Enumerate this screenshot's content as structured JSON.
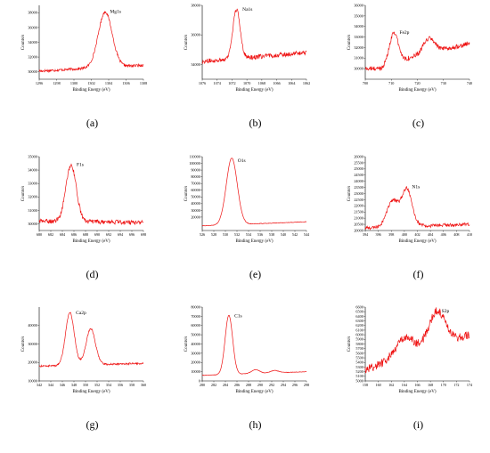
{
  "colors": {
    "line": "#ee1111",
    "axis": "#000000",
    "background": "#ffffff"
  },
  "chart_data": [
    {
      "type": "line",
      "panel": "(a)",
      "peak": "Mg1s",
      "xlabel": "Binding Energy (eV)",
      "ylabel": "Counts/s",
      "xlim": [
        1296,
        1308
      ],
      "ylim": [
        29000,
        39000
      ],
      "xticks": [
        "1296",
        "1298",
        "1300",
        "1302",
        "1304",
        "1306",
        "1308"
      ],
      "yticks": [
        "30000",
        "32000",
        "34000",
        "36000",
        "38000"
      ],
      "reversed": false,
      "baseline": [
        [
          1296,
          30100
        ],
        [
          1308,
          30900
        ]
      ],
      "peaks": [
        {
          "center": 1303.6,
          "height": 7500,
          "width": 0.8
        }
      ],
      "noise": 180
    },
    {
      "type": "line",
      "panel": "(b)",
      "peak": "Na1s",
      "xlabel": "Binding Energy (eV)",
      "ylabel": "Counts/s",
      "xlim": [
        1076,
        1062
      ],
      "ylim": [
        33000,
        38000
      ],
      "xticks": [
        "1076",
        "1074",
        "1072",
        "1070",
        "1068",
        "1066",
        "1064",
        "1062"
      ],
      "yticks": [
        "34000",
        "36000",
        "38000"
      ],
      "reversed": true,
      "baseline": [
        [
          1076,
          34200
        ],
        [
          1062,
          34800
        ]
      ],
      "peaks": [
        {
          "center": 1071.4,
          "height": 3300,
          "width": 0.5
        }
      ],
      "noise": 150
    },
    {
      "type": "line",
      "panel": "(c)",
      "peak": "Fe2p",
      "xlabel": "Binding Energy (eV)",
      "ylabel": "Counts/s",
      "xlim": [
        700,
        740
      ],
      "ylim": [
        29000,
        36000
      ],
      "xticks": [
        "700",
        "710",
        "720",
        "730",
        "740"
      ],
      "yticks": [
        "30000",
        "31000",
        "32000",
        "33000",
        "34000",
        "35000",
        "36000"
      ],
      "reversed": false,
      "step": {
        "at": 707,
        "from": 30000,
        "to": 32300
      },
      "baseline": [
        [
          700,
          30000
        ],
        [
          740,
          32400
        ]
      ],
      "peaks": [
        {
          "center": 711,
          "height": 2800,
          "width": 1.6
        },
        {
          "center": 724.5,
          "height": 1400,
          "width": 2.2
        }
      ],
      "noise": 220
    },
    {
      "type": "line",
      "panel": "(d)",
      "peak": "F1s",
      "xlabel": "Binding Energy (eV)",
      "ylabel": "Counts/s",
      "xlim": [
        680,
        698
      ],
      "ylim": [
        29500,
        35000
      ],
      "xticks": [
        "680",
        "682",
        "684",
        "686",
        "688",
        "690",
        "692",
        "694",
        "696",
        "698"
      ],
      "yticks": [
        "30000",
        "31000",
        "32000",
        "33000",
        "34000",
        "35000"
      ],
      "reversed": false,
      "baseline": [
        [
          680,
          30200
        ],
        [
          698,
          30100
        ]
      ],
      "peaks": [
        {
          "center": 685.5,
          "height": 4200,
          "width": 0.9
        }
      ],
      "noise": 160
    },
    {
      "type": "line",
      "panel": "(e)",
      "peak": "O1s",
      "xlabel": "Binding Energy (eV)",
      "ylabel": "Counts/s",
      "xlim": [
        526,
        544
      ],
      "ylim": [
        0,
        110000
      ],
      "xticks": [
        "526",
        "528",
        "530",
        "532",
        "534",
        "536",
        "538",
        "540",
        "542",
        "544"
      ],
      "yticks": [
        "20000",
        "30000",
        "40000",
        "50000",
        "60000",
        "70000",
        "80000",
        "90000",
        "100000",
        "110000"
      ],
      "reversed": false,
      "baseline": [
        [
          526,
          7000
        ],
        [
          544,
          13000
        ]
      ],
      "peaks": [
        {
          "center": 531.1,
          "height": 99000,
          "width": 0.95
        }
      ],
      "noise": 400
    },
    {
      "type": "line",
      "panel": "(f)",
      "peak": "N1s",
      "xlabel": "Binding Energy (eV)",
      "ylabel": "Counts/s",
      "xlim": [
        394,
        410
      ],
      "ylim": [
        20000,
        26000
      ],
      "xticks": [
        "394",
        "396",
        "398",
        "400",
        "402",
        "404",
        "406",
        "408",
        "410"
      ],
      "yticks": [
        "20000",
        "20500",
        "21000",
        "21500",
        "22000",
        "22500",
        "23000",
        "23500",
        "24000",
        "24500",
        "25000",
        "25500",
        "26000"
      ],
      "reversed": false,
      "baseline": [
        [
          394,
          20200
        ],
        [
          410,
          20500
        ]
      ],
      "peaks": [
        {
          "center": 398.2,
          "height": 2100,
          "width": 0.9
        },
        {
          "center": 400.4,
          "height": 3000,
          "width": 0.8
        }
      ],
      "noise": 140
    },
    {
      "type": "line",
      "panel": "(g)",
      "peak": "Ca2p",
      "xlabel": "Binding Energy (eV)",
      "ylabel": "Counts/s",
      "xlim": [
        342,
        360
      ],
      "ylim": [
        10000,
        50000
      ],
      "xticks": [
        "342",
        "344",
        "346",
        "348",
        "350",
        "352",
        "354",
        "356",
        "358",
        "360"
      ],
      "yticks": [
        "10000",
        "20000",
        "30000",
        "40000"
      ],
      "reversed": false,
      "baseline": [
        [
          342,
          18000
        ],
        [
          360,
          19500
        ]
      ],
      "peaks": [
        {
          "center": 347.3,
          "height": 28500,
          "width": 0.75
        },
        {
          "center": 350.9,
          "height": 19500,
          "width": 0.8
        }
      ],
      "noise": 450
    },
    {
      "type": "line",
      "panel": "(h)",
      "peak": "C1s",
      "xlabel": "Binding Energy (eV)",
      "ylabel": "Counts/s",
      "xlim": [
        280,
        298
      ],
      "ylim": [
        0,
        80000
      ],
      "xticks": [
        "280",
        "282",
        "284",
        "286",
        "288",
        "290",
        "292",
        "294",
        "296",
        "298"
      ],
      "yticks": [
        "0",
        "10000",
        "20000",
        "30000",
        "40000",
        "50000",
        "60000",
        "70000",
        "80000"
      ],
      "reversed": false,
      "baseline": [
        [
          280,
          6000
        ],
        [
          298,
          10000
        ]
      ],
      "peaks": [
        {
          "center": 284.6,
          "height": 64000,
          "width": 0.65
        },
        {
          "center": 289.2,
          "height": 4000,
          "width": 0.7
        },
        {
          "center": 292.5,
          "height": 2500,
          "width": 0.7
        }
      ],
      "noise": 250
    },
    {
      "type": "line",
      "panel": "(i)",
      "peak": "S2p",
      "xlabel": "Binding Energy (eV)",
      "ylabel": "Counts/s",
      "xlim": [
        158,
        174
      ],
      "ylim": [
        5000,
        6600
      ],
      "xticks": [
        "158",
        "160",
        "162",
        "164",
        "166",
        "168",
        "170",
        "172",
        "174"
      ],
      "yticks": [
        "5000",
        "5100",
        "5200",
        "5300",
        "5400",
        "5500",
        "5600",
        "5700",
        "5800",
        "5900",
        "6000",
        "6100",
        "6200",
        "6300",
        "6400",
        "6500",
        "6600"
      ],
      "reversed": false,
      "baseline": [
        [
          158,
          5250
        ],
        [
          174,
          6000
        ]
      ],
      "peaks": [
        {
          "center": 164,
          "height": 400,
          "width": 1.4
        },
        {
          "center": 169,
          "height": 750,
          "width": 1.3
        }
      ],
      "noise": 90
    }
  ]
}
